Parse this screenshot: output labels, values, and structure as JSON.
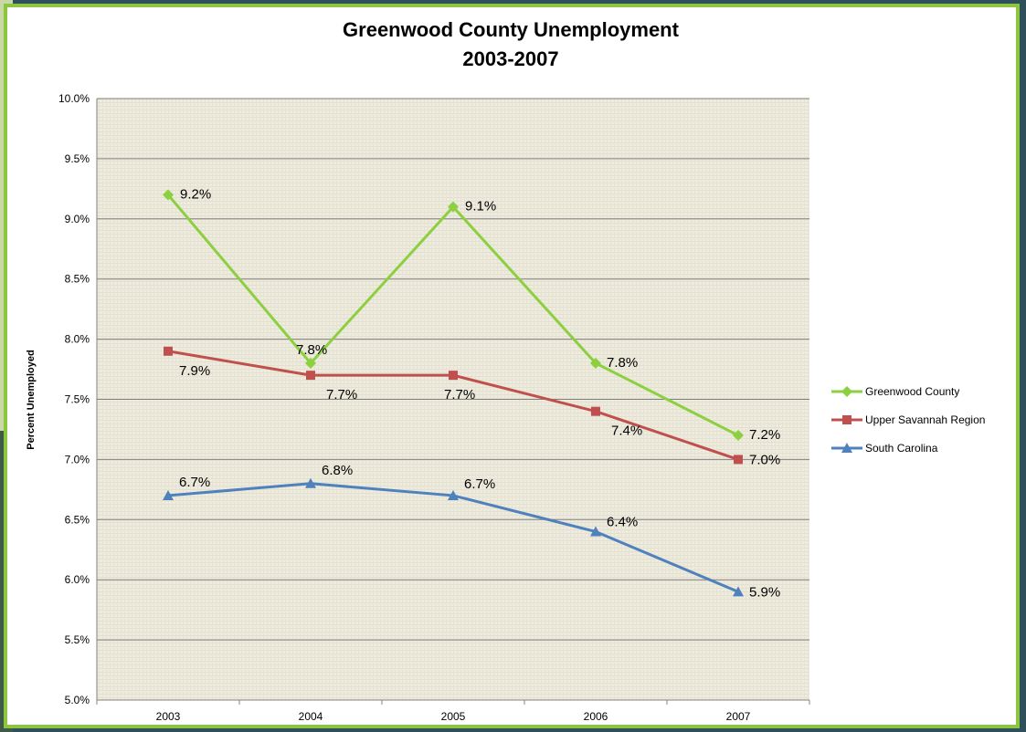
{
  "chart_data": {
    "type": "line",
    "title": "Greenwood County Unemployment",
    "subtitle": "2003-2007",
    "xlabel": "",
    "ylabel": "Percent Unemployed",
    "categories": [
      "2003",
      "2004",
      "2005",
      "2006",
      "2007"
    ],
    "ylim": [
      5.0,
      10.0
    ],
    "ytick_step": 0.5,
    "ytick_labels": [
      "5.0%",
      "5.5%",
      "6.0%",
      "6.5%",
      "7.0%",
      "7.5%",
      "8.0%",
      "8.5%",
      "9.0%",
      "9.5%",
      "10.0%"
    ],
    "grid": true,
    "legend_position": "right",
    "series": [
      {
        "name": "Greenwood County",
        "color": "#8ccf3f",
        "marker": "diamond",
        "values": [
          9.2,
          7.8,
          9.1,
          7.8,
          7.2
        ],
        "labels": [
          "9.2%",
          "7.8%",
          "9.1%",
          "7.8%",
          "7.2%"
        ]
      },
      {
        "name": "Upper Savannah Region",
        "color": "#c0504d",
        "marker": "square",
        "values": [
          7.9,
          7.7,
          7.7,
          7.4,
          7.0
        ],
        "labels": [
          "7.9%",
          "7.7%",
          "7.7%",
          "7.4%",
          "7.0%"
        ]
      },
      {
        "name": "South Carolina",
        "color": "#4f81bd",
        "marker": "triangle",
        "values": [
          6.7,
          6.8,
          6.7,
          6.4,
          5.9
        ],
        "labels": [
          "6.7%",
          "6.8%",
          "6.7%",
          "6.4%",
          "5.9%"
        ]
      }
    ],
    "colors": {
      "frame": "#8cc63e",
      "plot_bg": "#eeece1",
      "gridline": "#808080"
    }
  }
}
